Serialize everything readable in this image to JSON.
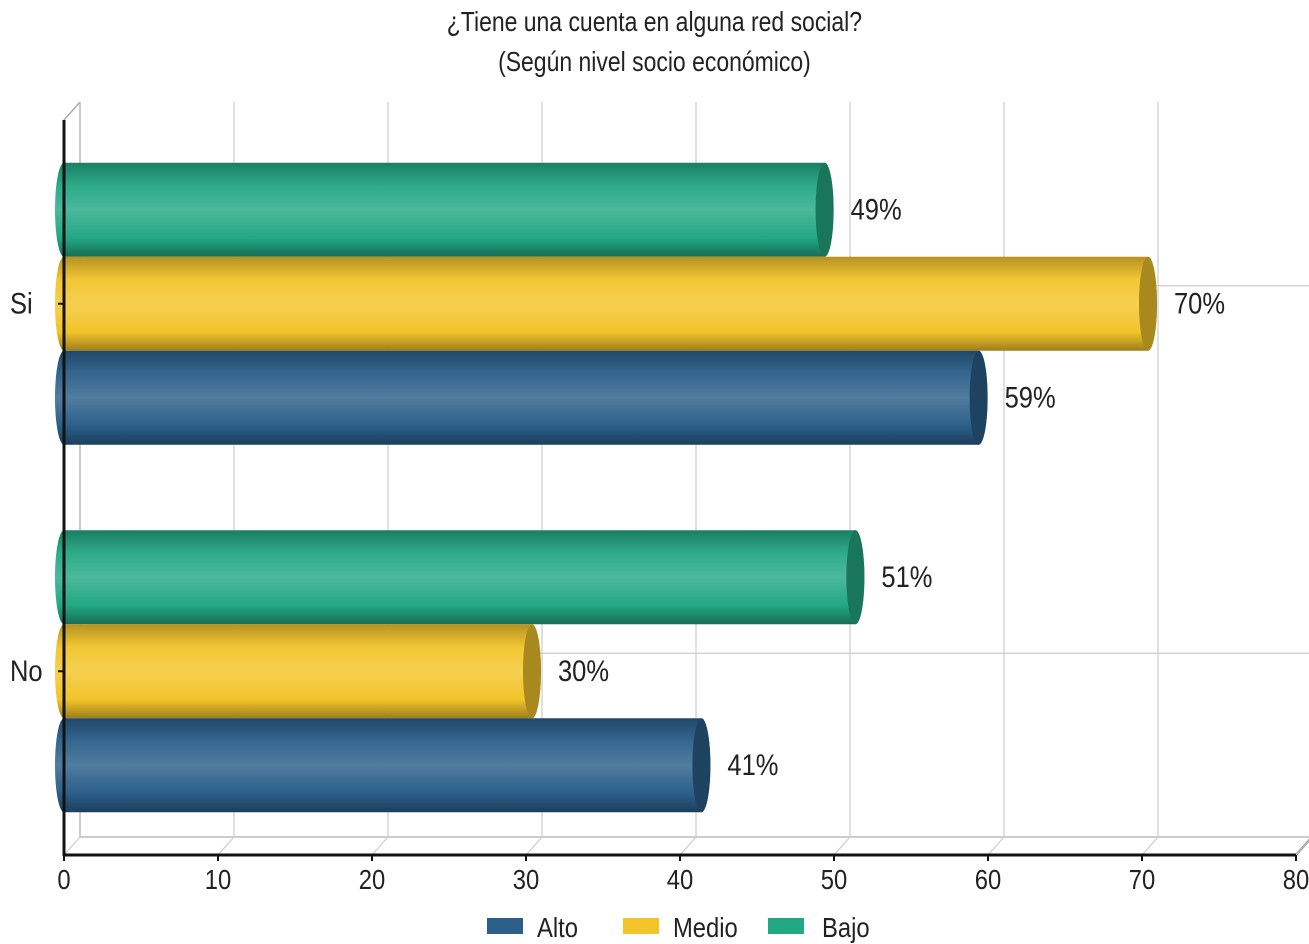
{
  "chart_data": {
    "type": "bar",
    "orientation": "horizontal",
    "style": "3d-cylinder",
    "title": "¿Tiene una cuenta en alguna red social?",
    "subtitle": "(Según nivel socio económico)",
    "xlabel": "",
    "ylabel": "",
    "categories": [
      "Si",
      "No"
    ],
    "x_ticks": [
      "0",
      "10",
      "20",
      "30",
      "40",
      "50",
      "60",
      "70",
      "80"
    ],
    "xlim": [
      0,
      80
    ],
    "grid": true,
    "legend_position": "bottom",
    "series": [
      {
        "name": "Alto",
        "color": "#2b5f8a",
        "values": [
          59,
          41
        ],
        "labels": [
          "59%",
          "41%"
        ]
      },
      {
        "name": "Medio",
        "color": "#f2c42a",
        "values": [
          70,
          30
        ],
        "labels": [
          "70%",
          "30%"
        ]
      },
      {
        "name": "Bajo",
        "color": "#23a884",
        "values": [
          49,
          51
        ],
        "labels": [
          "49%",
          "51%"
        ]
      }
    ]
  }
}
